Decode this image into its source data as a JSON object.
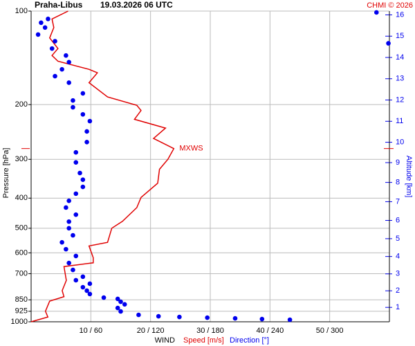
{
  "chart_data": {
    "type": "line",
    "title": "Praha-Libus",
    "subtitle": "19.03.2026 06 UTC",
    "credit": "CHMI © 2026",
    "ylabel": "Pressure [hPa]",
    "y2label": "Altitude [km]",
    "xlabel": "WIND",
    "yscale": "log",
    "ylim": [
      1000,
      100
    ],
    "yticks": [
      100,
      200,
      300,
      400,
      500,
      600,
      700,
      850,
      925,
      1000
    ],
    "y2scale": "standard-atmosphere",
    "y2ticks": [
      1,
      2,
      3,
      4,
      5,
      6,
      7,
      8,
      9,
      10,
      11,
      12,
      13,
      14,
      15,
      16
    ],
    "xlim": [
      0,
      60
    ],
    "x2lim": [
      0,
      360
    ],
    "xticks": [
      {
        "value": 10,
        "label": "10 / 60"
      },
      {
        "value": 20,
        "label": "20 / 120"
      },
      {
        "value": 30,
        "label": "30 / 180"
      },
      {
        "value": 40,
        "label": "40 / 240"
      },
      {
        "value": 50,
        "label": "50 / 300"
      }
    ],
    "grid": true,
    "annotations": [
      {
        "text": "MXWS",
        "color": "#e00000"
      }
    ],
    "series": [
      {
        "name": "Speed [m/s]",
        "color": "#e00000",
        "axis": "x",
        "marker": "line",
        "pressure": [
          1000,
          965,
          925,
          858,
          830,
          794,
          736,
          664,
          646,
          622,
          570,
          555,
          500,
          475,
          429,
          398,
          358,
          323,
          300,
          277,
          257,
          238,
          223,
          209,
          201,
          189,
          170,
          158,
          154,
          145,
          139,
          132,
          122,
          113,
          106,
          100
        ],
        "values": [
          0,
          2.8,
          2.4,
          3.1,
          5.5,
          5.2,
          5.9,
          5.5,
          10.4,
          10.4,
          9.7,
          12.8,
          13.5,
          15.3,
          17.7,
          18.4,
          21.2,
          21.5,
          22.9,
          23.9,
          20.5,
          22.5,
          17.3,
          18.4,
          17.7,
          12.8,
          9.7,
          11.1,
          9.7,
          4.5,
          3.5,
          4.5,
          3.1,
          3.8,
          3.5,
          6.2
        ]
      },
      {
        "name": "Direction [°]",
        "color": "#0000ee",
        "axis": "x2",
        "marker": "dot",
        "pressure": [
          985,
          980,
          975,
          970,
          965,
          960,
          950,
          926,
          903,
          879,
          862,
          844,
          836,
          814,
          794,
          774,
          754,
          735,
          716,
          681,
          647,
          614,
          584,
          555,
          527,
          500,
          476,
          452,
          429,
          408,
          387,
          368,
          349,
          332,
          307,
          285,
          264,
          244,
          226,
          215,
          204,
          194,
          184,
          170,
          162,
          154,
          146,
          139,
          132,
          125,
          119,
          113,
          109,
          106,
          101,
          127
        ],
        "values": [
          260,
          232,
          205,
          177,
          149,
          128,
          108,
          90,
          87,
          94,
          90,
          87,
          73,
          59,
          56,
          52,
          59,
          45,
          52,
          42,
          38,
          45,
          35,
          31,
          42,
          38,
          38,
          45,
          35,
          38,
          45,
          52,
          52,
          49,
          45,
          45,
          56,
          56,
          59,
          52,
          42,
          42,
          52,
          38,
          24,
          31,
          38,
          35,
          21,
          24,
          7,
          14,
          10,
          17,
          347,
          359
        ]
      }
    ]
  }
}
